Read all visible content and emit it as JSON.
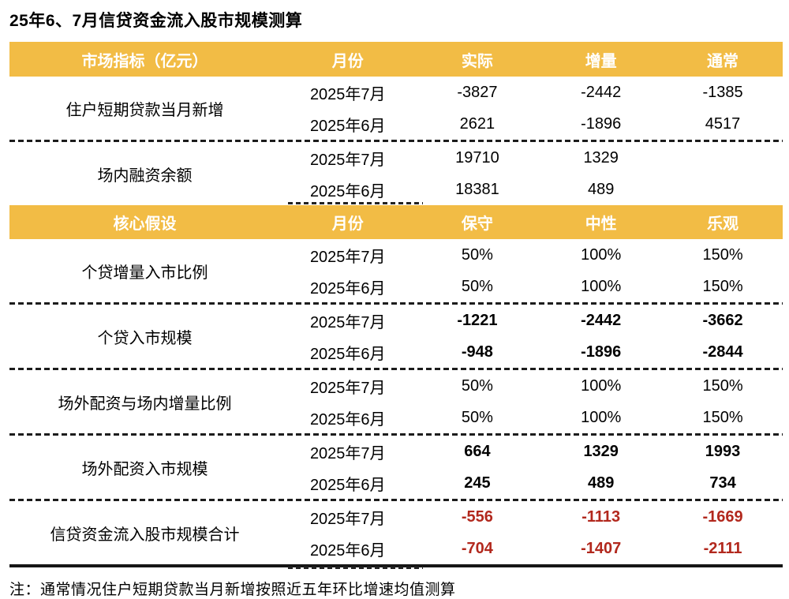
{
  "title": "25年6、7月信贷资金流入股市规模测算",
  "note": "注：通常情况住户短期贷款当月新增按照近五年环比增速均值测算",
  "colors": {
    "header_bg": "#F2BC45",
    "header_text": "#FFFFFF",
    "body_text": "#000000",
    "total_red": "#B2281D",
    "rule_black": "#161616"
  },
  "table": {
    "sections": [
      {
        "header": [
          "市场指标（亿元）",
          "月份",
          "实际",
          "增量",
          "通常"
        ],
        "groups": [
          {
            "label": "住户短期贷款当月新增",
            "value_style": "normal",
            "rows": [
              {
                "month": "2025年7月",
                "values": [
                  "-3827",
                  "-2442",
                  "-1385"
                ]
              },
              {
                "month": "2025年6月",
                "values": [
                  "2621",
                  "-1896",
                  "4517"
                ]
              }
            ]
          },
          {
            "label": "场内融资余额",
            "value_style": "normal",
            "rows": [
              {
                "month": "2025年7月",
                "values": [
                  "19710",
                  "1329",
                  ""
                ]
              },
              {
                "month": "2025年6月",
                "values": [
                  "18381",
                  "489",
                  ""
                ]
              }
            ]
          }
        ]
      },
      {
        "header": [
          "核心假设",
          "月份",
          "保守",
          "中性",
          "乐观"
        ],
        "groups": [
          {
            "label": "个贷增量入市比例",
            "value_style": "normal",
            "rows": [
              {
                "month": "2025年7月",
                "values": [
                  "50%",
                  "100%",
                  "150%"
                ]
              },
              {
                "month": "2025年6月",
                "values": [
                  "50%",
                  "100%",
                  "150%"
                ]
              }
            ]
          },
          {
            "label": "个贷入市规模",
            "value_style": "bold",
            "rows": [
              {
                "month": "2025年7月",
                "values": [
                  "-1221",
                  "-2442",
                  "-3662"
                ]
              },
              {
                "month": "2025年6月",
                "values": [
                  "-948",
                  "-1896",
                  "-2844"
                ]
              }
            ]
          },
          {
            "label": "场外配资与场内增量比例",
            "value_style": "normal",
            "rows": [
              {
                "month": "2025年7月",
                "values": [
                  "50%",
                  "100%",
                  "150%"
                ]
              },
              {
                "month": "2025年6月",
                "values": [
                  "50%",
                  "100%",
                  "150%"
                ]
              }
            ]
          },
          {
            "label": "场外配资入市规模",
            "value_style": "bold",
            "rows": [
              {
                "month": "2025年7月",
                "values": [
                  "664",
                  "1329",
                  "1993"
                ]
              },
              {
                "month": "2025年6月",
                "values": [
                  "245",
                  "489",
                  "734"
                ]
              }
            ]
          },
          {
            "label": "信贷资金流入股市规模合计",
            "value_style": "bold-red",
            "rows": [
              {
                "month": "2025年7月",
                "values": [
                  "-556",
                  "-1113",
                  "-1669"
                ]
              },
              {
                "month": "2025年6月",
                "values": [
                  "-704",
                  "-1407",
                  "-2111"
                ]
              }
            ]
          }
        ]
      }
    ]
  },
  "chart_data": {
    "type": "table",
    "title": "25年6、7月信贷资金流入股市规模测算",
    "note": "注：通常情况住户短期贷款当月新增按照近五年环比增速均值测算",
    "sections": [
      {
        "columns": [
          "市场指标（亿元）",
          "月份",
          "实际",
          "增量",
          "通常"
        ],
        "rows": [
          [
            "住户短期贷款当月新增",
            "2025年7月",
            -3827,
            -2442,
            -1385
          ],
          [
            "住户短期贷款当月新增",
            "2025年6月",
            2621,
            -1896,
            4517
          ],
          [
            "场内融资余额",
            "2025年7月",
            19710,
            1329,
            null
          ],
          [
            "场内融资余额",
            "2025年6月",
            18381,
            489,
            null
          ]
        ]
      },
      {
        "columns": [
          "核心假设",
          "月份",
          "保守",
          "中性",
          "乐观"
        ],
        "rows": [
          [
            "个贷增量入市比例",
            "2025年7月",
            "50%",
            "100%",
            "150%"
          ],
          [
            "个贷增量入市比例",
            "2025年6月",
            "50%",
            "100%",
            "150%"
          ],
          [
            "个贷入市规模",
            "2025年7月",
            -1221,
            -2442,
            -3662
          ],
          [
            "个贷入市规模",
            "2025年6月",
            -948,
            -1896,
            -2844
          ],
          [
            "场外配资与场内增量比例",
            "2025年7月",
            "50%",
            "100%",
            "150%"
          ],
          [
            "场外配资与场内增量比例",
            "2025年6月",
            "50%",
            "100%",
            "150%"
          ],
          [
            "场外配资入市规模",
            "2025年7月",
            664,
            1329,
            1993
          ],
          [
            "场外配资入市规模",
            "2025年6月",
            245,
            489,
            734
          ],
          [
            "信贷资金流入股市规模合计",
            "2025年7月",
            -556,
            -1113,
            -1669
          ],
          [
            "信贷资金流入股市规模合计",
            "2025年6月",
            -704,
            -1407,
            -2111
          ]
        ]
      }
    ]
  }
}
